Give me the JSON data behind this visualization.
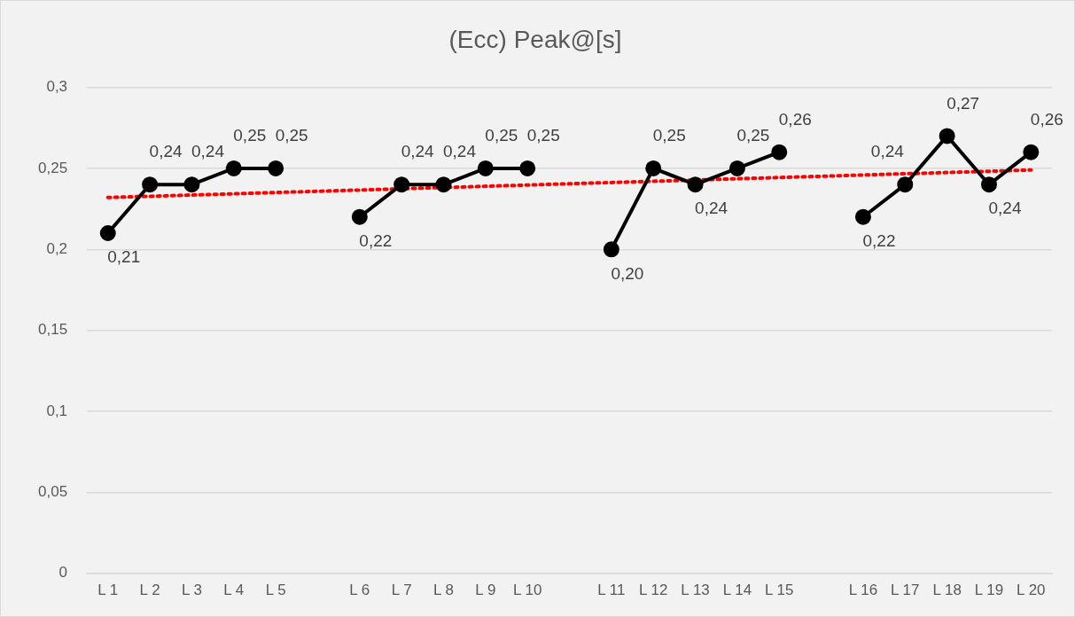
{
  "chart_data": {
    "type": "line",
    "title": "(Ecc) Peak@[s]",
    "categories": [
      "L 1",
      "L 2",
      "L 3",
      "L 4",
      "L 5",
      null,
      "L 6",
      "L 7",
      "L 8",
      "L 9",
      "L 10",
      null,
      "L 11",
      "L 12",
      "L 13",
      "L 14",
      "L 15",
      null,
      "L 16",
      "L 17",
      "L 18",
      "L 19",
      "L 20"
    ],
    "series": [
      {
        "color": "#000000",
        "values": [
          0.21,
          0.24,
          0.24,
          0.25,
          0.25,
          null,
          0.22,
          0.24,
          0.24,
          0.25,
          0.25,
          null,
          0.2,
          0.25,
          0.24,
          0.25,
          0.26,
          null,
          0.22,
          0.24,
          0.27,
          0.24,
          0.26
        ],
        "value_labels": [
          "0,21",
          "0,24",
          "0,24",
          "0,25",
          "0,25",
          null,
          "0,22",
          "0,24",
          "0,24",
          "0,25",
          "0,25",
          null,
          "0,20",
          "0,25",
          "0,24",
          "0,25",
          "0,26",
          null,
          "0,22",
          "0,24",
          "0,27",
          "0,24",
          "0,26"
        ],
        "marker": "circle",
        "line_style": "solid"
      },
      {
        "type": "line",
        "color": "#ff0000",
        "x": [
          "L 1",
          "L 20"
        ],
        "values": [
          0.232,
          0.249
        ],
        "marker": "none",
        "line_style": "dotted"
      }
    ],
    "ylim": [
      0,
      0.3
    ],
    "yticks": [
      0,
      {
        "value": 0.05,
        "label": "0,05"
      },
      {
        "value": 0.1,
        "label": "0,1"
      },
      {
        "value": 0.15,
        "label": "0,15"
      },
      {
        "value": 0.2,
        "label": "0,2"
      },
      {
        "value": 0.25,
        "label": "0,25"
      },
      {
        "value": 0.3,
        "label": "0,3"
      }
    ],
    "grid": "y",
    "legend": false
  }
}
